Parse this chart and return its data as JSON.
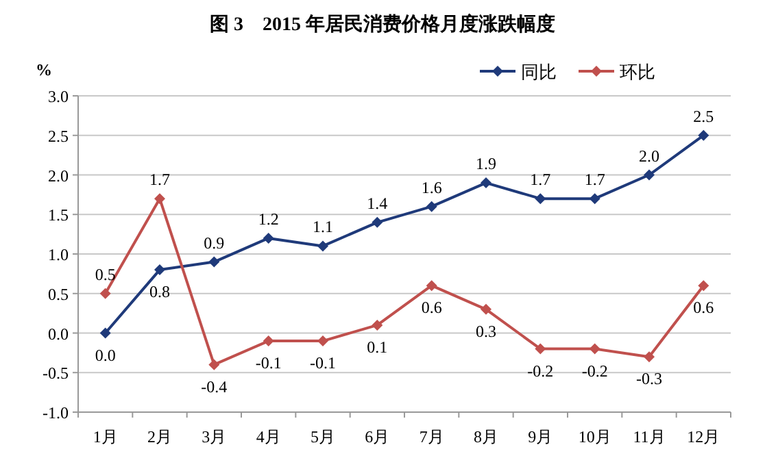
{
  "chart_data": {
    "type": "line",
    "title": "图 3　2015 年居民消费价格月度涨跌幅度",
    "ylabel": "%",
    "categories": [
      "1月",
      "2月",
      "3月",
      "4月",
      "5月",
      "6月",
      "7月",
      "8月",
      "9月",
      "10月",
      "11月",
      "12月"
    ],
    "series": [
      {
        "name": "同比",
        "color": "#1f3a7a",
        "values": [
          0.0,
          0.8,
          0.9,
          1.2,
          1.1,
          1.4,
          1.6,
          1.9,
          1.7,
          1.7,
          2.0,
          2.5
        ],
        "value_labels": [
          "0.0",
          "0.8",
          "0.9",
          "1.2",
          "1.1",
          "1.4",
          "1.6",
          "1.9",
          "1.7",
          "1.7",
          "2.0",
          "2.5"
        ]
      },
      {
        "name": "环比",
        "color": "#c0504d",
        "values": [
          0.5,
          1.7,
          -0.4,
          -0.1,
          -0.1,
          0.1,
          0.6,
          0.3,
          -0.2,
          -0.2,
          -0.3,
          0.6
        ],
        "value_labels": [
          "0.5",
          "1.7",
          "-0.4",
          "-0.1",
          "-0.1",
          "0.1",
          "0.6",
          "0.3",
          "-0.2",
          "-0.2",
          "-0.3",
          "0.6"
        ]
      }
    ],
    "ylim": [
      -1.0,
      3.0
    ],
    "yticks": [
      {
        "value": -1.0,
        "label": "-1.0"
      },
      {
        "value": -0.5,
        "label": "-0.5"
      },
      {
        "value": 0,
        "label": "0.0"
      },
      {
        "value": 0.5,
        "label": "0.5"
      },
      {
        "value": 1.0,
        "label": "1.0"
      },
      {
        "value": 1.5,
        "label": "1.5"
      },
      {
        "value": 2.0,
        "label": "2.0"
      },
      {
        "value": 2.5,
        "label": "2.5"
      },
      {
        "value": 3.0,
        "label": "3.0"
      }
    ],
    "grid": "y",
    "legend": "top right",
    "marker": "diamond",
    "line_style": "solid"
  }
}
